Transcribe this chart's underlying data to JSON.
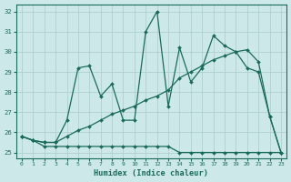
{
  "xlabel": "Humidex (Indice chaleur)",
  "bg_color": "#cce8e8",
  "line_color": "#1a6b5a",
  "grid_color": "#aacccc",
  "xlim_min": -0.5,
  "xlim_max": 23.5,
  "ylim_min": 24.7,
  "ylim_max": 32.35,
  "xticks": [
    0,
    1,
    2,
    3,
    4,
    5,
    6,
    7,
    8,
    9,
    10,
    11,
    12,
    13,
    14,
    15,
    16,
    17,
    18,
    19,
    20,
    21,
    22,
    23
  ],
  "yticks": [
    25,
    26,
    27,
    28,
    29,
    30,
    31,
    32
  ],
  "series1_x": [
    0,
    1,
    2,
    3,
    4,
    5,
    6,
    7,
    8,
    9,
    10,
    11,
    12,
    13,
    14,
    15,
    16,
    17,
    18,
    19,
    20,
    21,
    22,
    23
  ],
  "series1_y": [
    25.8,
    25.6,
    25.5,
    25.5,
    26.6,
    29.2,
    29.3,
    27.8,
    28.4,
    26.6,
    26.6,
    31.0,
    32.0,
    27.3,
    30.2,
    28.5,
    29.2,
    30.8,
    30.3,
    30.0,
    29.2,
    29.0,
    26.8,
    25.0
  ],
  "series2_x": [
    0,
    1,
    2,
    3,
    4,
    5,
    6,
    7,
    8,
    9,
    10,
    11,
    12,
    13,
    14,
    15,
    16,
    17,
    18,
    19,
    20,
    21,
    22,
    23
  ],
  "series2_y": [
    25.8,
    25.6,
    25.3,
    25.3,
    25.3,
    25.3,
    25.3,
    25.3,
    25.3,
    25.3,
    25.3,
    25.3,
    25.3,
    25.3,
    25.0,
    25.0,
    25.0,
    25.0,
    25.0,
    25.0,
    25.0,
    25.0,
    25.0,
    25.0
  ],
  "series3_x": [
    0,
    1,
    2,
    3,
    4,
    5,
    6,
    7,
    8,
    9,
    10,
    11,
    12,
    13,
    14,
    15,
    16,
    17,
    18,
    19,
    20,
    21,
    22,
    23
  ],
  "series3_y": [
    25.8,
    25.6,
    25.5,
    25.5,
    25.8,
    26.1,
    26.3,
    26.6,
    26.9,
    27.1,
    27.3,
    27.6,
    27.8,
    28.1,
    28.7,
    29.0,
    29.3,
    29.6,
    29.8,
    30.0,
    30.1,
    29.5,
    26.8,
    25.0
  ]
}
